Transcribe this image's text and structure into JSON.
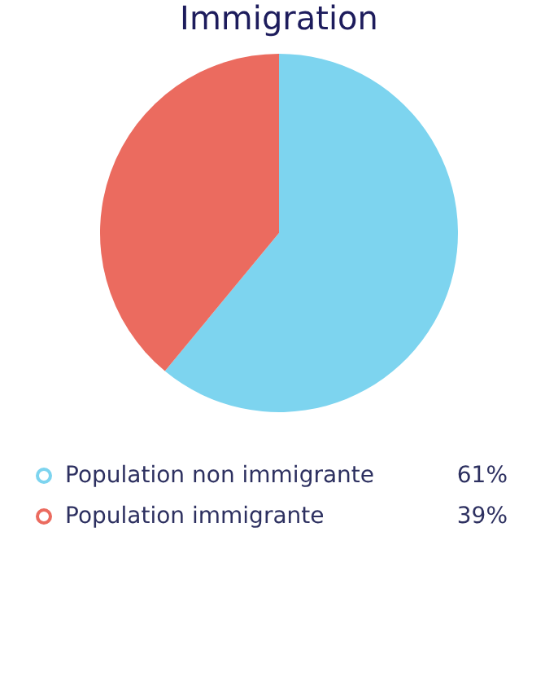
{
  "chart_data": {
    "type": "pie",
    "title": "Immigration",
    "categories": [
      "Population non immigrante",
      "Population immigrante"
    ],
    "values": [
      61,
      39
    ],
    "colors": [
      "#7dd4ef",
      "#eb6b5f"
    ],
    "value_labels": [
      "61%",
      "39%"
    ],
    "legend": "bottom"
  }
}
